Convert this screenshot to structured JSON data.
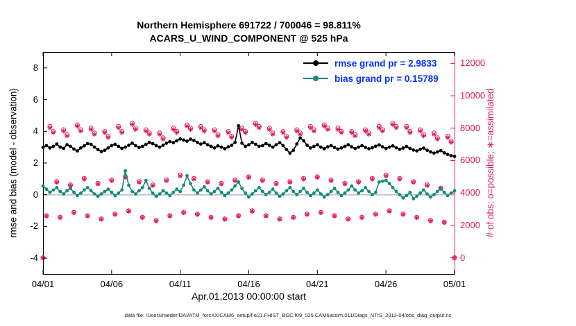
{
  "caption": "data file: /Users/raeder/DAI/ATM_forcXX/CAM6_setup/f.e21.FHIST_BGC.f09_025.CAM6assim.011/Diags_NTrS_2013-04/obs_diag_output.nc",
  "colors": {
    "rmse": "#000000",
    "bias": "#128b7d",
    "obs": "#df185f",
    "legend_text": "#0033ff",
    "zero_line": "#c4c4c4"
  },
  "chart_data": {
    "type": "line",
    "title1": "Northern Hemisphere 691722 / 700046 = 98.811%",
    "title2": "ACARS_U_WIND_COMPONENT @ 525 hPa",
    "xlabel": "Apr.01,2013 00:00:00 start",
    "x_tick_labels": [
      "04/01",
      "04/06",
      "04/11",
      "04/16",
      "04/21",
      "04/26",
      "05/01"
    ],
    "x_ticks_days": [
      0,
      5,
      10,
      15,
      20,
      25,
      30
    ],
    "x_range_days": [
      0,
      30
    ],
    "x_step_days": 0.25,
    "left_axis": {
      "label": "rmse and bias (model - observation)",
      "ticks": [
        -4,
        -2,
        0,
        2,
        4,
        6,
        8
      ],
      "range": [
        -5,
        9
      ]
    },
    "right_axis": {
      "label": "# of obs: o=possible; ∗=assimilated",
      "ticks": [
        0,
        2000,
        4000,
        6000,
        8000,
        10000,
        12000
      ],
      "range": [
        -1000,
        12700
      ]
    },
    "legend": [
      {
        "name": "rmse",
        "label": "rmse grand pr = 2.9833"
      },
      {
        "name": "bias",
        "label": "bias grand pr = 0.15789"
      }
    ],
    "grid": false,
    "series": {
      "rmse": [
        2.98,
        3.1,
        2.95,
        3.05,
        3.2,
        3.0,
        2.92,
        3.15,
        3.05,
        2.88,
        2.76,
        2.95,
        3.08,
        3.22,
        3.18,
        3.0,
        2.85,
        2.72,
        2.8,
        2.95,
        3.1,
        3.18,
        3.05,
        2.92,
        3.0,
        3.12,
        3.25,
        3.1,
        2.98,
        3.05,
        3.18,
        3.3,
        3.22,
        3.1,
        3.0,
        3.12,
        3.25,
        3.35,
        3.28,
        3.4,
        3.52,
        3.45,
        3.38,
        3.5,
        3.42,
        3.3,
        3.2,
        3.28,
        3.15,
        3.05,
        2.95,
        3.08,
        3.0,
        2.9,
        3.02,
        3.12,
        3.3,
        4.35,
        3.25,
        3.05,
        3.15,
        3.3,
        3.18,
        3.05,
        3.1,
        3.22,
        3.12,
        3.0,
        3.15,
        3.28,
        3.1,
        2.85,
        2.62,
        2.8,
        3.2,
        3.58,
        3.4,
        3.12,
        2.95,
        3.05,
        3.15,
        3.0,
        2.9,
        3.02,
        3.1,
        2.98,
        2.88,
        2.95,
        3.05,
        3.15,
        3.02,
        2.92,
        3.0,
        3.1,
        2.98,
        2.9,
        2.96,
        3.06,
        3.14,
        3.02,
        2.92,
        3.0,
        3.08,
        2.96,
        2.86,
        2.94,
        3.04,
        2.92,
        2.82,
        2.76,
        2.86,
        2.94,
        2.8,
        2.7,
        2.62,
        2.7,
        2.78,
        2.64,
        2.54,
        2.46,
        2.42
      ],
      "bias": [
        0.55,
        0.35,
        0.15,
        0.3,
        0.45,
        0.2,
        0.05,
        0.25,
        0.4,
        0.15,
        -0.05,
        0.1,
        0.3,
        0.45,
        0.25,
        0.05,
        -0.1,
        0.05,
        0.2,
        0.35,
        0.15,
        -0.05,
        0.1,
        0.3,
        1.5,
        0.6,
        0.2,
        0.05,
        0.25,
        0.45,
        0.9,
        0.4,
        0.1,
        -0.1,
        0.05,
        0.25,
        0.1,
        -0.05,
        0.15,
        0.35,
        0.2,
        0.6,
        1.2,
        0.7,
        0.3,
        0.1,
        0.3,
        0.5,
        0.25,
        0.05,
        0.2,
        0.4,
        0.15,
        -0.05,
        0.1,
        0.3,
        0.55,
        0.8,
        0.4,
        0.1,
        -0.15,
        0.05,
        0.25,
        0.45,
        0.2,
        0.0,
        0.15,
        0.35,
        0.1,
        -0.1,
        0.05,
        0.25,
        0.45,
        0.2,
        0.0,
        0.2,
        0.4,
        0.15,
        -0.05,
        0.1,
        0.3,
        0.05,
        -0.15,
        0.0,
        0.2,
        0.4,
        0.15,
        -0.05,
        0.1,
        0.3,
        0.55,
        0.3,
        0.1,
        0.25,
        0.45,
        0.2,
        0.0,
        0.15,
        0.8,
        0.85,
        0.9,
        0.7,
        0.45,
        0.2,
        0.0,
        -0.2,
        -0.05,
        0.15,
        -0.25,
        -0.1,
        0.1,
        0.3,
        0.05,
        -0.15,
        0.0,
        0.2,
        0.4,
        0.15,
        -0.05,
        0.1,
        0.25
      ],
      "possible": [
        0,
        2600,
        8100,
        7800,
        4700,
        2500,
        7900,
        7600,
        4500,
        2800,
        8200,
        7900,
        4900,
        2600,
        8000,
        7700,
        4600,
        2400,
        7800,
        7500,
        4800,
        2700,
        8100,
        7800,
        5000,
        2900,
        8300,
        8000,
        4700,
        2500,
        7900,
        7700,
        4500,
        2300,
        7700,
        7400,
        4800,
        2600,
        8000,
        7800,
        5100,
        2800,
        8200,
        8000,
        4900,
        2700,
        8100,
        7900,
        4700,
        2500,
        7900,
        7600,
        4600,
        2400,
        7800,
        7500,
        4800,
        2600,
        8000,
        7800,
        5000,
        2900,
        8300,
        8100,
        4800,
        2600,
        8000,
        7700,
        4600,
        2400,
        7800,
        7500,
        4700,
        2500,
        7900,
        7700,
        4900,
        2700,
        8100,
        7900,
        5000,
        2800,
        8200,
        8000,
        4800,
        2600,
        8000,
        7800,
        4600,
        2400,
        7800,
        7600,
        4700,
        2500,
        7900,
        7700,
        4900,
        2700,
        8100,
        7900,
        5100,
        2900,
        8300,
        8100,
        4900,
        2700,
        8100,
        7800,
        4700,
        2500,
        7900,
        7600,
        4500,
        2300,
        7700,
        7400,
        4300,
        2200,
        7500,
        7200,
        0
      ],
      "assimilated": [
        0,
        2575,
        8020,
        7720,
        4655,
        2475,
        7820,
        7520,
        4455,
        2775,
        8120,
        7820,
        4855,
        2575,
        7920,
        7620,
        4555,
        2375,
        7720,
        7420,
        4755,
        2675,
        8020,
        7720,
        4955,
        2875,
        8220,
        7920,
        4655,
        2475,
        7820,
        7620,
        4455,
        2275,
        7620,
        7320,
        4755,
        2575,
        7920,
        7720,
        5055,
        2775,
        8120,
        7920,
        4855,
        2675,
        8020,
        7820,
        4655,
        2475,
        7820,
        7520,
        4555,
        2375,
        7720,
        7420,
        4755,
        2575,
        7920,
        7720,
        4955,
        2875,
        8220,
        8020,
        4755,
        2575,
        7920,
        7620,
        4555,
        2375,
        7720,
        7420,
        4655,
        2475,
        7820,
        7620,
        4855,
        2675,
        8020,
        7820,
        4955,
        2775,
        8120,
        7920,
        4755,
        2575,
        7920,
        7720,
        4555,
        2375,
        7720,
        7520,
        4655,
        2475,
        7820,
        7620,
        4855,
        2675,
        8020,
        7820,
        5055,
        2875,
        8220,
        8020,
        4855,
        2675,
        8020,
        7720,
        4655,
        2475,
        7820,
        7520,
        4455,
        2275,
        7620,
        7320,
        4255,
        2175,
        7420,
        7120,
        0
      ]
    }
  }
}
